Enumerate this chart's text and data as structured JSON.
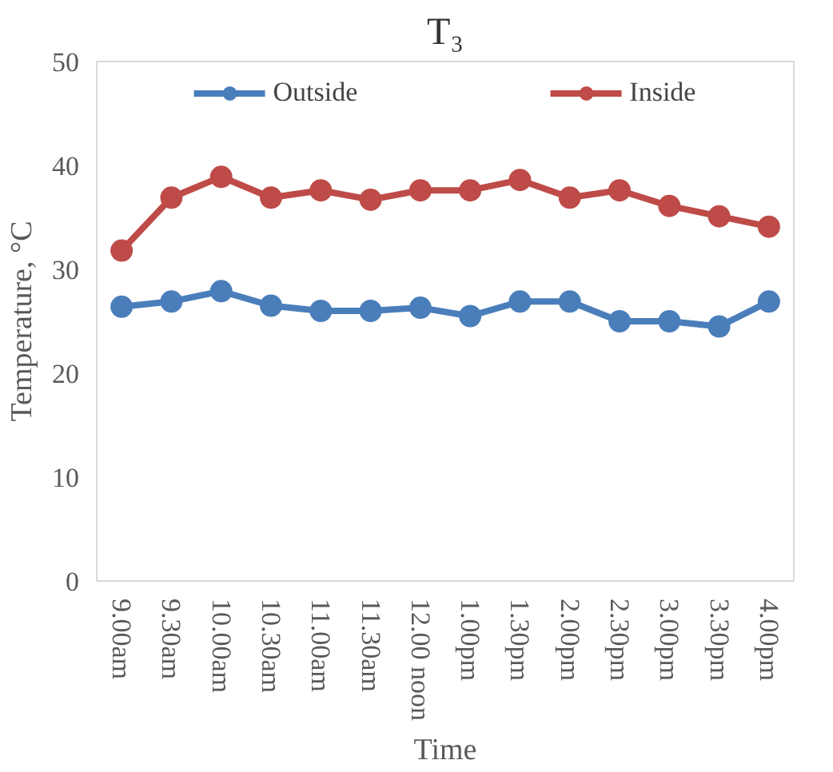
{
  "chart_data": {
    "type": "line",
    "title": "T₃",
    "xlabel": "Time",
    "ylabel": "Temperature, °C",
    "categories": [
      "9.00am",
      "9.30am",
      "10.00am",
      "10.30am",
      "11.00am",
      "11.30am",
      "12.00 noon",
      "1.00pm",
      "1.30pm",
      "2.00pm",
      "2.30pm",
      "3.00pm",
      "3.30pm",
      "4.00pm"
    ],
    "series": [
      {
        "name": "Outside",
        "color": "#4a7ebb",
        "values": [
          26.4,
          26.9,
          27.9,
          26.5,
          26.0,
          26.0,
          26.3,
          25.5,
          26.9,
          26.9,
          25.0,
          25.0,
          24.5,
          26.9
        ]
      },
      {
        "name": "Inside",
        "color": "#be4b48",
        "values": [
          31.8,
          36.9,
          38.9,
          36.9,
          37.6,
          36.7,
          37.6,
          37.6,
          38.6,
          36.9,
          37.6,
          36.1,
          35.1,
          34.1
        ]
      }
    ],
    "ylim": [
      0,
      50
    ],
    "yticks": [
      0,
      10,
      20,
      30,
      40,
      50
    ],
    "grid": false,
    "legend": "top",
    "marker": "circle",
    "line_style": "solid"
  }
}
